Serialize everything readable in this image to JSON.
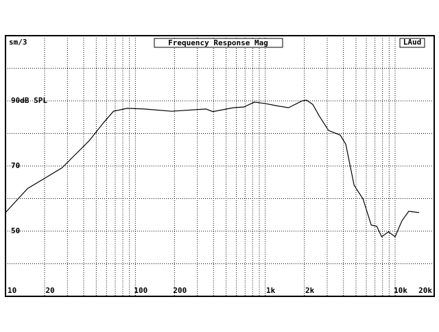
{
  "chart_data": {
    "type": "line",
    "title": "Frequency Response Mag",
    "corner_left": "sm/3",
    "corner_right": "LAud",
    "log_x": true,
    "xlim": [
      10,
      20000
    ],
    "ylim": [
      30,
      110
    ],
    "xticks": [
      10,
      20,
      100,
      200,
      {
        "value": 1000,
        "label": "1k"
      },
      {
        "value": 2000,
        "label": "2k"
      },
      {
        "value": 10000,
        "label": "10k"
      },
      {
        "value": 20000,
        "label": "20k"
      }
    ],
    "yticks": [
      {
        "value": 90,
        "label": "90dB SPL"
      },
      70,
      50
    ],
    "ygrid": [
      40,
      50,
      60,
      70,
      80,
      90,
      100
    ],
    "grid": true,
    "color": "#000000",
    "x": [
      10,
      14.8,
      27.2,
      44.2,
      56.4,
      67.8,
      86.6,
      117,
      190,
      350,
      395,
      570,
      685,
      822,
      990,
      1260,
      1510,
      1930,
      2080,
      2320,
      2620,
      3070,
      3780,
      4170,
      4830,
      5660,
      6550,
      7230,
      7880,
      8890,
      10000,
      11290,
      12740,
      15290
    ],
    "values": [
      55.7,
      63.1,
      69.4,
      77.8,
      83.1,
      86.8,
      87.7,
      87.5,
      86.8,
      87.5,
      86.7,
      87.9,
      88.1,
      89.6,
      89.2,
      88.4,
      87.9,
      90,
      90.2,
      88.9,
      85.2,
      80.9,
      79.5,
      76.7,
      64.1,
      59.9,
      51.9,
      51.5,
      48.3,
      49.8,
      48.3,
      53.2,
      56.1,
      55.7
    ]
  }
}
